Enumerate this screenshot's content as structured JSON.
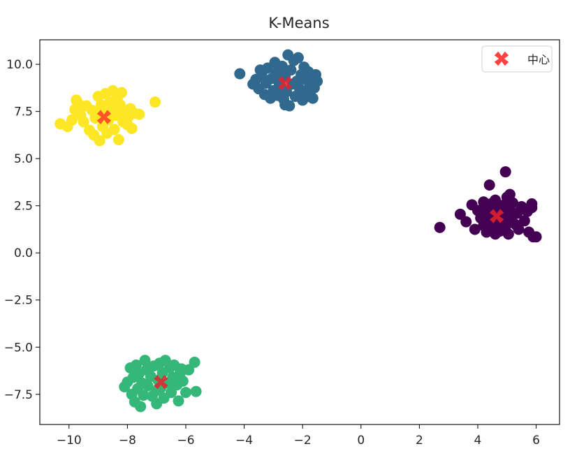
{
  "chart_data": {
    "type": "scatter",
    "title": "K-Means",
    "xlabel": "",
    "ylabel": "",
    "xlim": [
      -11,
      6.8
    ],
    "ylim": [
      -9.1,
      11.3
    ],
    "xticks": [
      -10,
      -8,
      -6,
      -4,
      -2,
      0,
      2,
      4,
      6
    ],
    "yticks": [
      10.0,
      7.5,
      5.0,
      2.5,
      0.0,
      -2.5,
      -5.0,
      -7.5
    ],
    "ytick_labels": [
      "10.0",
      "7.5",
      "5.0",
      "2.5",
      "0.0",
      "−2.5",
      "−5.0",
      "−7.5"
    ],
    "xtick_labels": [
      "−10",
      "−8",
      "−6",
      "−4",
      "−2",
      "0",
      "2",
      "4",
      "6"
    ],
    "grid": false,
    "legend": {
      "placement": "top-right",
      "entries": [
        {
          "label": "中心",
          "marker": "x-filled",
          "color": "#ff2020"
        }
      ]
    },
    "clusters": [
      {
        "color": "#440154",
        "points": [
          [
            2.7,
            1.35
          ],
          [
            3.4,
            2.05
          ],
          [
            3.6,
            1.65
          ],
          [
            3.8,
            2.55
          ],
          [
            3.9,
            1.25
          ],
          [
            4.0,
            2.25
          ],
          [
            4.1,
            1.85
          ],
          [
            4.2,
            1.45
          ],
          [
            4.25,
            2.4
          ],
          [
            4.3,
            1.1
          ],
          [
            4.35,
            2.0
          ],
          [
            4.4,
            1.7
          ],
          [
            4.45,
            2.6
          ],
          [
            4.5,
            1.3
          ],
          [
            4.5,
            2.2
          ],
          [
            4.55,
            1.9
          ],
          [
            4.6,
            2.8
          ],
          [
            4.65,
            1.55
          ],
          [
            4.7,
            2.35
          ],
          [
            4.75,
            1.15
          ],
          [
            4.8,
            2.05
          ],
          [
            4.85,
            1.75
          ],
          [
            4.9,
            2.55
          ],
          [
            4.95,
            1.4
          ],
          [
            5.0,
            2.95
          ],
          [
            5.05,
            1.0
          ],
          [
            5.1,
            2.25
          ],
          [
            5.15,
            1.85
          ],
          [
            5.2,
            2.65
          ],
          [
            5.3,
            1.5
          ],
          [
            5.35,
            2.1
          ],
          [
            5.4,
            1.25
          ],
          [
            5.5,
            2.45
          ],
          [
            5.6,
            1.7
          ],
          [
            5.7,
            2.2
          ],
          [
            5.75,
            1.1
          ],
          [
            5.85,
            2.6
          ],
          [
            5.9,
            0.85
          ],
          [
            6.0,
            0.85
          ],
          [
            5.85,
            2.4
          ],
          [
            4.4,
            3.6
          ],
          [
            4.95,
            4.3
          ],
          [
            5.1,
            3.1
          ],
          [
            4.2,
            2.7
          ],
          [
            4.6,
            1.0
          ]
        ]
      },
      {
        "color": "#31688e",
        "points": [
          [
            -4.15,
            9.5
          ],
          [
            -3.7,
            8.95
          ],
          [
            -3.6,
            9.2
          ],
          [
            -3.5,
            8.7
          ],
          [
            -3.4,
            9.45
          ],
          [
            -3.3,
            8.4
          ],
          [
            -3.25,
            9.0
          ],
          [
            -3.2,
            9.8
          ],
          [
            -3.1,
            8.2
          ],
          [
            -3.05,
            9.25
          ],
          [
            -3.0,
            8.6
          ],
          [
            -2.95,
            10.1
          ],
          [
            -2.9,
            9.55
          ],
          [
            -2.85,
            8.35
          ],
          [
            -2.8,
            9.0
          ],
          [
            -2.75,
            8.8
          ],
          [
            -2.7,
            9.9
          ],
          [
            -2.65,
            8.15
          ],
          [
            -2.6,
            9.35
          ],
          [
            -2.55,
            8.55
          ],
          [
            -2.5,
            10.5
          ],
          [
            -2.45,
            7.8
          ],
          [
            -2.4,
            9.7
          ],
          [
            -2.35,
            8.95
          ],
          [
            -2.3,
            10.2
          ],
          [
            -2.25,
            8.3
          ],
          [
            -2.2,
            9.1
          ],
          [
            -2.15,
            10.35
          ],
          [
            -2.1,
            8.7
          ],
          [
            -2.05,
            9.45
          ],
          [
            -2.0,
            8.1
          ],
          [
            -1.95,
            9.85
          ],
          [
            -1.9,
            9.2
          ],
          [
            -1.85,
            8.5
          ],
          [
            -1.8,
            9.6
          ],
          [
            -1.75,
            8.9
          ],
          [
            -1.7,
            9.3
          ],
          [
            -1.65,
            8.2
          ],
          [
            -1.6,
            8.75
          ],
          [
            -1.55,
            9.45
          ],
          [
            -1.5,
            9.1
          ],
          [
            -1.95,
            8.2
          ],
          [
            -3.45,
            9.7
          ],
          [
            -2.6,
            7.85
          ]
        ]
      },
      {
        "color": "#35b779",
        "points": [
          [
            -8.1,
            -7.1
          ],
          [
            -8.0,
            -6.85
          ],
          [
            -7.9,
            -6.1
          ],
          [
            -7.85,
            -7.5
          ],
          [
            -7.8,
            -6.6
          ],
          [
            -7.75,
            -7.9
          ],
          [
            -7.7,
            -5.95
          ],
          [
            -7.65,
            -7.2
          ],
          [
            -7.6,
            -6.4
          ],
          [
            -7.55,
            -8.15
          ],
          [
            -7.5,
            -6.9
          ],
          [
            -7.45,
            -7.55
          ],
          [
            -7.4,
            -5.7
          ],
          [
            -7.35,
            -6.2
          ],
          [
            -7.3,
            -7.05
          ],
          [
            -7.2,
            -6.55
          ],
          [
            -7.15,
            -7.6
          ],
          [
            -7.1,
            -6.0
          ],
          [
            -7.0,
            -7.3
          ],
          [
            -6.95,
            -6.75
          ],
          [
            -6.9,
            -5.85
          ],
          [
            -6.85,
            -7.15
          ],
          [
            -6.8,
            -6.35
          ],
          [
            -6.75,
            -7.7
          ],
          [
            -6.7,
            -5.7
          ],
          [
            -6.6,
            -6.9
          ],
          [
            -6.55,
            -6.1
          ],
          [
            -6.5,
            -7.4
          ],
          [
            -6.45,
            -6.6
          ],
          [
            -6.4,
            -5.95
          ],
          [
            -6.3,
            -7.0
          ],
          [
            -6.25,
            -7.85
          ],
          [
            -6.2,
            -6.4
          ],
          [
            -6.1,
            -6.8
          ],
          [
            -6.0,
            -7.4
          ],
          [
            -5.9,
            -6.2
          ],
          [
            -5.7,
            -5.8
          ],
          [
            -5.65,
            -7.35
          ],
          [
            -6.15,
            -6.15
          ],
          [
            -7.0,
            -8.0
          ]
        ]
      },
      {
        "color": "#fde725",
        "points": [
          [
            -10.3,
            6.85
          ],
          [
            -10.05,
            6.7
          ],
          [
            -9.9,
            7.05
          ],
          [
            -9.8,
            7.6
          ],
          [
            -9.75,
            8.1
          ],
          [
            -9.6,
            7.3
          ],
          [
            -9.5,
            6.95
          ],
          [
            -9.4,
            7.8
          ],
          [
            -9.3,
            6.5
          ],
          [
            -9.2,
            7.55
          ],
          [
            -9.15,
            6.25
          ],
          [
            -9.1,
            7.15
          ],
          [
            -9.0,
            8.3
          ],
          [
            -8.95,
            5.95
          ],
          [
            -8.9,
            7.85
          ],
          [
            -8.85,
            6.7
          ],
          [
            -8.8,
            7.4
          ],
          [
            -8.75,
            8.45
          ],
          [
            -8.7,
            6.35
          ],
          [
            -8.65,
            7.05
          ],
          [
            -8.6,
            8.0
          ],
          [
            -8.55,
            7.6
          ],
          [
            -8.5,
            8.6
          ],
          [
            -8.45,
            6.55
          ],
          [
            -8.4,
            7.3
          ],
          [
            -8.35,
            8.2
          ],
          [
            -8.3,
            6.0
          ],
          [
            -8.25,
            7.85
          ],
          [
            -8.2,
            8.5
          ],
          [
            -8.15,
            6.95
          ],
          [
            -8.1,
            7.5
          ],
          [
            -8.0,
            6.8
          ],
          [
            -7.95,
            7.25
          ],
          [
            -7.9,
            7.65
          ],
          [
            -7.85,
            6.6
          ],
          [
            -7.75,
            7.4
          ],
          [
            -7.6,
            7.35
          ],
          [
            -7.05,
            8.0
          ],
          [
            -9.65,
            7.85
          ],
          [
            -8.95,
            7.3
          ]
        ]
      }
    ],
    "centers": [
      {
        "x": 4.65,
        "y": 1.95,
        "color": "#e8222a"
      },
      {
        "x": -2.6,
        "y": 9.0,
        "color": "#e8222a"
      },
      {
        "x": -6.85,
        "y": -6.85,
        "color": "#e8222a"
      },
      {
        "x": -8.8,
        "y": 7.2,
        "color": "#ff3a2a"
      }
    ]
  }
}
